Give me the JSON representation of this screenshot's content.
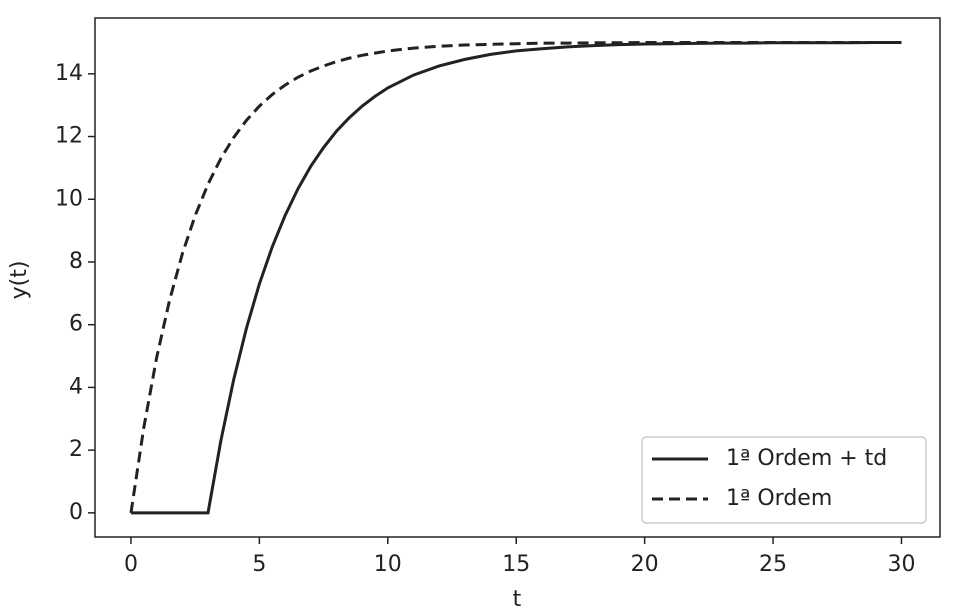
{
  "chart_data": {
    "type": "line",
    "x_label": "t",
    "y_label": "y(t)",
    "x": [
      0,
      0.5,
      1,
      1.5,
      2,
      2.5,
      3,
      3.5,
      4,
      4.5,
      5,
      5.5,
      6,
      6.5,
      7,
      7.5,
      8,
      8.5,
      9,
      9.5,
      10,
      11,
      12,
      13,
      14,
      15,
      16,
      17,
      18,
      19,
      20,
      21,
      22,
      23,
      24,
      25,
      26,
      27,
      28,
      29,
      30
    ],
    "series": [
      {
        "name": "1ª Ordem + td",
        "color": "#222222",
        "style": "solid",
        "values": [
          0,
          0,
          0,
          0,
          0,
          0,
          0,
          2.3,
          4.25,
          5.9,
          7.3,
          8.48,
          9.48,
          10.33,
          11.05,
          11.65,
          12.17,
          12.6,
          12.97,
          13.28,
          13.55,
          13.96,
          14.25,
          14.46,
          14.62,
          14.73,
          14.8,
          14.86,
          14.9,
          14.93,
          14.95,
          14.96,
          14.97,
          14.98,
          14.98,
          14.99,
          14.99,
          14.99,
          14.99,
          15.0,
          15.0
        ]
      },
      {
        "name": "1ª Ordem",
        "color": "#222222",
        "style": "dashed",
        "values": [
          0,
          2.72,
          4.95,
          6.77,
          8.26,
          9.48,
          10.48,
          11.3,
          11.97,
          12.52,
          12.97,
          13.34,
          13.64,
          13.89,
          14.09,
          14.25,
          14.39,
          14.5,
          14.59,
          14.66,
          14.73,
          14.82,
          14.88,
          14.92,
          14.94,
          14.96,
          14.98,
          14.98,
          14.99,
          14.99,
          15.0,
          15.0,
          15.0,
          15.0,
          15.0,
          15.0,
          15.0,
          15.0,
          15.0,
          15.0,
          15.0
        ]
      }
    ],
    "xlim": [
      -1.4,
      31.5
    ],
    "ylim": [
      -0.77,
      15.78
    ],
    "xticks": [
      0,
      5,
      10,
      15,
      20,
      25,
      30
    ],
    "yticks": [
      0,
      2,
      4,
      6,
      8,
      10,
      12,
      14
    ],
    "legend": "lower right"
  }
}
